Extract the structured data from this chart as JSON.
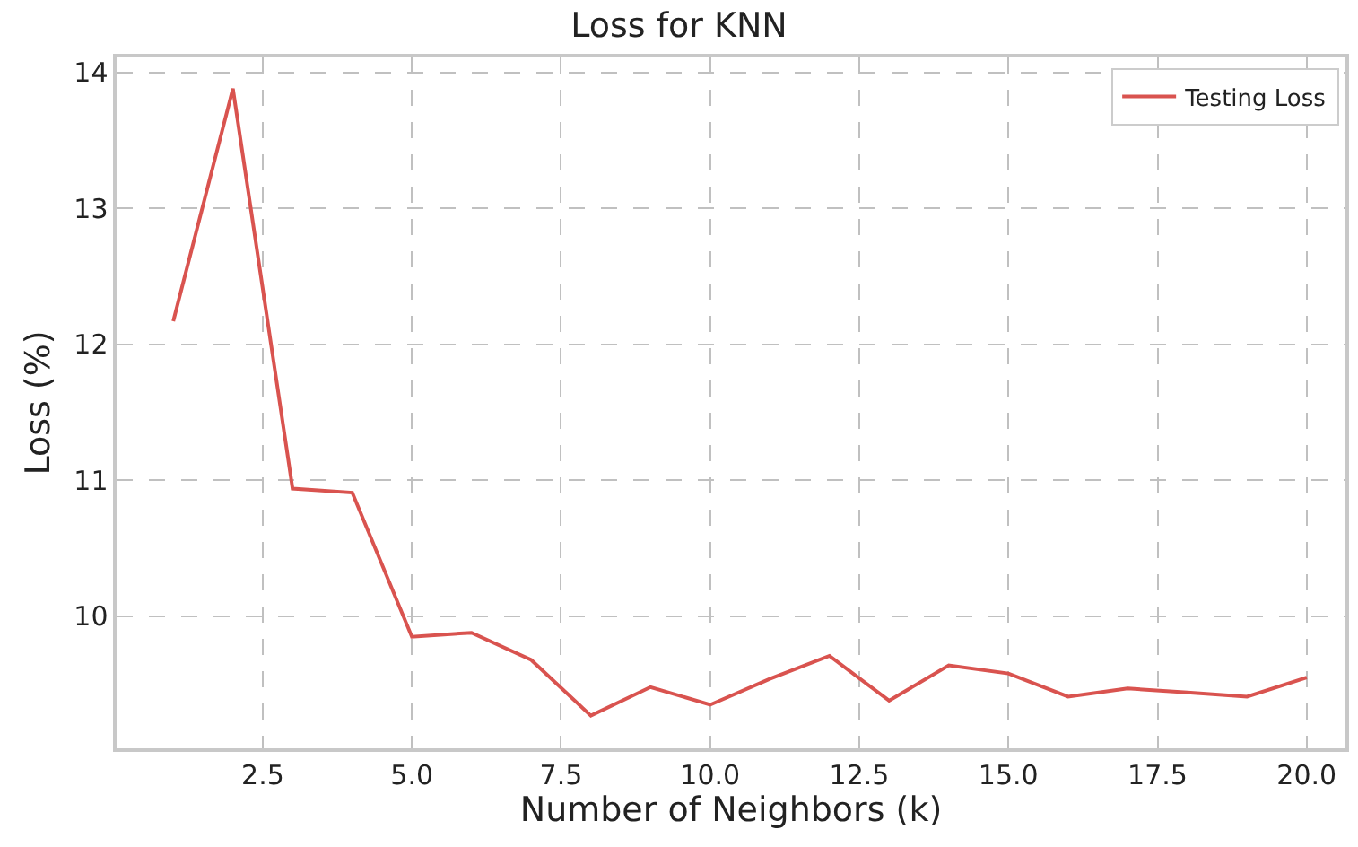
{
  "chart_data": {
    "type": "line",
    "title": "Loss for KNN",
    "xlabel": "Number of Neighbors (k)",
    "ylabel": "Loss (%)",
    "x": [
      1,
      2,
      3,
      4,
      5,
      6,
      7,
      8,
      9,
      10,
      11,
      12,
      13,
      14,
      15,
      16,
      17,
      18,
      19,
      20
    ],
    "series": [
      {
        "name": "Testing Loss",
        "color": "#d9534f",
        "values": [
          12.17,
          13.88,
          10.94,
          10.91,
          9.85,
          9.88,
          9.68,
          9.27,
          9.48,
          9.35,
          9.54,
          9.71,
          9.38,
          9.64,
          9.58,
          9.41,
          9.47,
          9.44,
          9.41,
          9.55
        ]
      }
    ],
    "xlim": [
      0.05,
      20.65
    ],
    "ylim": [
      9.03,
      14.11
    ],
    "xticks": [
      {
        "value": 2.5,
        "label": "2.5"
      },
      {
        "value": 5,
        "label": "5.0"
      },
      {
        "value": 7.5,
        "label": "7.5"
      },
      {
        "value": 10,
        "label": "10.0"
      },
      {
        "value": 12.5,
        "label": "12.5"
      },
      {
        "value": 15,
        "label": "15.0"
      },
      {
        "value": 17.5,
        "label": "17.5"
      },
      {
        "value": 20,
        "label": "20.0"
      }
    ],
    "yticks": [
      10,
      11,
      12,
      13,
      14
    ],
    "grid": true,
    "legend": "top right",
    "line_style": "solid"
  }
}
